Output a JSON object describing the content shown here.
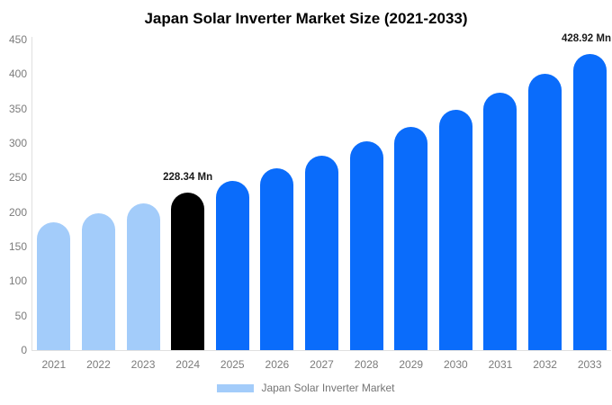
{
  "chart_data": {
    "type": "bar",
    "title": "Japan Solar Inverter Market Size (2021-2033)",
    "unit": "Mn",
    "categories": [
      "2021",
      "2022",
      "2023",
      "2024",
      "2025",
      "2026",
      "2027",
      "2028",
      "2029",
      "2030",
      "2031",
      "2032",
      "2033"
    ],
    "values": [
      185,
      198,
      213,
      228.34,
      245,
      263,
      282,
      302,
      324,
      348,
      373,
      400,
      428.92
    ],
    "colors": [
      "#A3CCFA",
      "#A3CCFA",
      "#A3CCFA",
      "#000000",
      "#0A6CFB",
      "#0A6CFB",
      "#0A6CFB",
      "#0A6CFB",
      "#0A6CFB",
      "#0A6CFB",
      "#0A6CFB",
      "#0A6CFB",
      "#0A6CFB"
    ],
    "color_roles": {
      "historical": "#A3CCFA",
      "base_year_highlight": "#000000",
      "forecast": "#0A6CFB"
    },
    "annotations": [
      {
        "category": "2024",
        "text": "228.34 Mn"
      },
      {
        "category": "2033",
        "text": "428.92 Mn"
      }
    ],
    "xlabel": "",
    "ylabel": "",
    "ylim": [
      0,
      450
    ],
    "yticks": [
      0,
      50,
      100,
      150,
      200,
      250,
      300,
      350,
      400,
      450
    ],
    "grid": false,
    "axis_text_color": "#7b7b7b",
    "axis_line_color": "#e0e0e0",
    "legend": {
      "position": "bottom",
      "label": "Japan Solar Inverter Market",
      "swatch_color": "#A3CCFA"
    }
  }
}
